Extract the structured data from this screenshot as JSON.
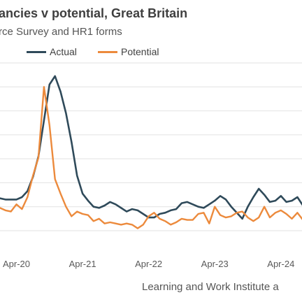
{
  "chart_data": {
    "type": "line",
    "title": "ancies v potential, Great Britain",
    "subtitle": "rce Survey and HR1 forms",
    "source": "Learning and Work Institute a",
    "legend": {
      "placement": "top-left"
    },
    "grid": {
      "y": true,
      "x": false
    },
    "x": [
      "Dec-19",
      "Jan-20",
      "Feb-20",
      "Mar-20",
      "Apr-20",
      "May-20",
      "Jun-20",
      "Jul-20",
      "Aug-20",
      "Sep-20",
      "Oct-20",
      "Nov-20",
      "Dec-20",
      "Jan-21",
      "Feb-21",
      "Mar-21",
      "Apr-21",
      "May-21",
      "Jun-21",
      "Jul-21",
      "Aug-21",
      "Sep-21",
      "Oct-21",
      "Nov-21",
      "Dec-21",
      "Jan-22",
      "Feb-22",
      "Mar-22",
      "Apr-22",
      "May-22",
      "Jun-22",
      "Jul-22",
      "Aug-22",
      "Sep-22",
      "Oct-22",
      "Nov-22",
      "Dec-22",
      "Jan-23",
      "Feb-23",
      "Mar-23",
      "Apr-23",
      "May-23",
      "Jun-23",
      "Jul-23",
      "Aug-23",
      "Sep-23",
      "Oct-23",
      "Nov-23",
      "Dec-23",
      "Jan-24",
      "Feb-24",
      "Mar-24",
      "Apr-24",
      "May-24",
      "Jun-24",
      "Jul-24",
      "Aug-24"
    ],
    "x_ticks": [
      "Apr-20",
      "Apr-21",
      "Apr-22",
      "Apr-23",
      "Apr-24"
    ],
    "ylim": [
      0,
      7
    ],
    "y_grid": [
      0,
      1,
      2,
      3,
      4,
      5,
      6,
      7
    ],
    "series": [
      {
        "name": "Actual",
        "color": "#2f4a5a",
        "values": [
          1.4,
          1.35,
          1.3,
          1.3,
          1.3,
          1.4,
          1.65,
          2.25,
          3.1,
          4.6,
          6.1,
          6.45,
          5.8,
          4.9,
          3.7,
          2.3,
          1.55,
          1.25,
          1.0,
          0.95,
          1.05,
          1.2,
          1.1,
          0.95,
          0.8,
          0.9,
          0.85,
          0.7,
          0.55,
          0.55,
          0.7,
          0.75,
          0.85,
          0.9,
          1.15,
          1.2,
          1.1,
          1.0,
          0.95,
          1.1,
          1.25,
          1.45,
          1.3,
          1.0,
          0.75,
          0.5,
          1.0,
          1.4,
          1.75,
          1.5,
          1.2,
          1.25,
          1.45,
          1.2,
          1.25,
          1.4,
          1.05
        ]
      },
      {
        "name": "Potential",
        "color": "#ec8a3c",
        "values": [
          0.8,
          0.95,
          0.85,
          0.8,
          1.1,
          0.9,
          1.4,
          2.3,
          3.05,
          6.0,
          4.4,
          2.15,
          1.55,
          1.0,
          0.6,
          0.8,
          0.7,
          0.65,
          0.4,
          0.5,
          0.3,
          0.35,
          0.3,
          0.25,
          0.3,
          0.25,
          0.1,
          0.25,
          0.6,
          0.75,
          0.5,
          0.4,
          0.25,
          0.35,
          0.5,
          0.45,
          0.45,
          0.7,
          0.75,
          0.3,
          1.0,
          0.65,
          0.55,
          0.6,
          0.75,
          0.8,
          0.55,
          0.4,
          0.55,
          1.0,
          0.55,
          0.75,
          0.85,
          0.7,
          0.5,
          0.75,
          0.45
        ]
      }
    ]
  }
}
